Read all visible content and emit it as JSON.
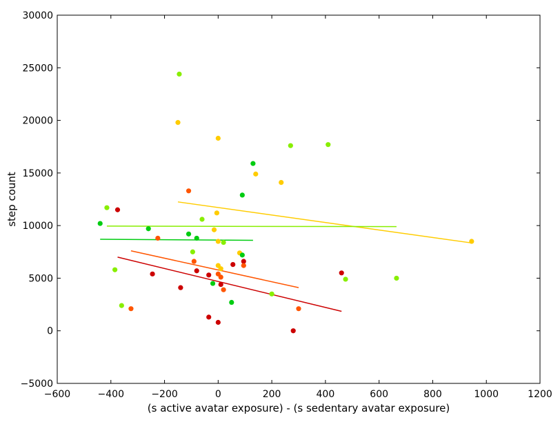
{
  "chart_data": {
    "type": "scatter",
    "title": "",
    "xlabel": "(s active avatar exposure) - (s sedentary avatar exposure)",
    "ylabel": "step count",
    "xlim": [
      -600,
      1200
    ],
    "ylim": [
      -5000,
      30000
    ],
    "xticks": [
      -600,
      -400,
      -200,
      0,
      200,
      400,
      600,
      800,
      1000,
      1200
    ],
    "yticks": [
      -5000,
      0,
      5000,
      10000,
      15000,
      20000,
      25000,
      30000
    ],
    "xtick_labels": [
      "−600",
      "−400",
      "−200",
      "0",
      "200",
      "400",
      "600",
      "800",
      "1000",
      "1200"
    ],
    "ytick_labels": [
      "−5000",
      "0",
      "5000",
      "10000",
      "15000",
      "20000",
      "25000",
      "30000"
    ],
    "grid": false,
    "series": [
      {
        "color": "#cc0000",
        "points": [
          [
            -375,
            11500
          ],
          [
            -245,
            5400
          ],
          [
            -140,
            4100
          ],
          [
            -80,
            5700
          ],
          [
            -35,
            5300
          ],
          [
            -35,
            1300
          ],
          [
            0,
            800
          ],
          [
            10,
            4400
          ],
          [
            55,
            6300
          ],
          [
            95,
            6600
          ],
          [
            280,
            0
          ],
          [
            460,
            5500
          ]
        ],
        "fit": [
          [
            -375,
            7000
          ],
          [
            460,
            1850
          ]
        ]
      },
      {
        "color": "#ff5500",
        "points": [
          [
            -325,
            2100
          ],
          [
            -225,
            8800
          ],
          [
            -110,
            13300
          ],
          [
            -90,
            6600
          ],
          [
            0,
            5400
          ],
          [
            10,
            5100
          ],
          [
            20,
            3900
          ],
          [
            95,
            6200
          ],
          [
            300,
            2100
          ]
        ],
        "fit": [
          [
            -325,
            7600
          ],
          [
            300,
            4100
          ]
        ]
      },
      {
        "color": "#ffcc00",
        "points": [
          [
            -150,
            19800
          ],
          [
            -15,
            9600
          ],
          [
            -5,
            11200
          ],
          [
            0,
            18300
          ],
          [
            0,
            8500
          ],
          [
            0,
            6200
          ],
          [
            10,
            5900
          ],
          [
            80,
            7400
          ],
          [
            140,
            14900
          ],
          [
            235,
            14100
          ],
          [
            945,
            8500
          ]
        ],
        "fit": [
          [
            -150,
            12250
          ],
          [
            945,
            8350
          ]
        ]
      },
      {
        "color": "#88ee00",
        "points": [
          [
            -415,
            11700
          ],
          [
            -385,
            5800
          ],
          [
            -360,
            2400
          ],
          [
            -145,
            24400
          ],
          [
            -95,
            7500
          ],
          [
            -60,
            10600
          ],
          [
            20,
            8400
          ],
          [
            200,
            3500
          ],
          [
            270,
            17600
          ],
          [
            410,
            17700
          ],
          [
            475,
            4900
          ],
          [
            665,
            5000
          ]
        ],
        "fit": [
          [
            -415,
            9950
          ],
          [
            665,
            9900
          ]
        ]
      },
      {
        "color": "#00cc11",
        "points": [
          [
            -440,
            10200
          ],
          [
            -260,
            9700
          ],
          [
            -110,
            9200
          ],
          [
            -80,
            8800
          ],
          [
            -20,
            4500
          ],
          [
            50,
            2700
          ],
          [
            90,
            7200
          ],
          [
            90,
            12900
          ],
          [
            130,
            15900
          ]
        ],
        "fit": [
          [
            -440,
            8700
          ],
          [
            130,
            8600
          ]
        ]
      }
    ]
  }
}
